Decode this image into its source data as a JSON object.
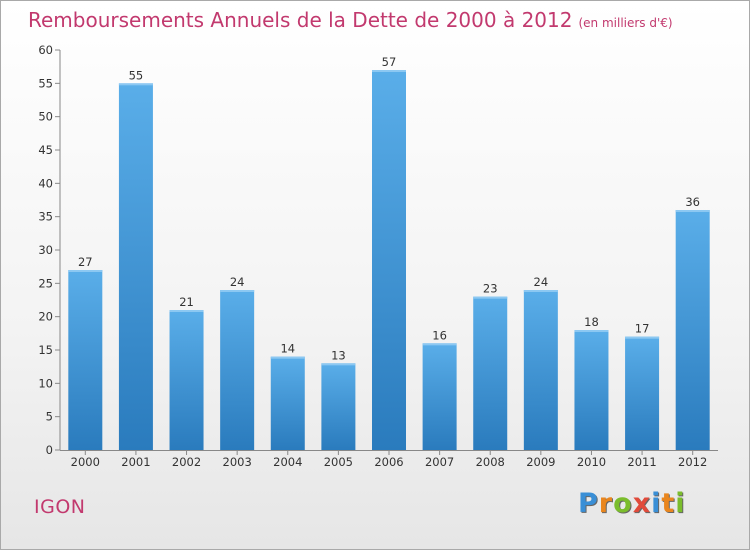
{
  "chart_data": {
    "type": "bar",
    "title": "Remboursements Annuels de la Dette de 2000 à 2012",
    "subtitle": "(en milliers d'€)",
    "categories": [
      "2000",
      "2001",
      "2002",
      "2003",
      "2004",
      "2005",
      "2006",
      "2007",
      "2008",
      "2009",
      "2010",
      "2011",
      "2012"
    ],
    "values": [
      27,
      55,
      21,
      24,
      14,
      13,
      57,
      16,
      23,
      24,
      18,
      17,
      36
    ],
    "ylim": [
      0,
      60
    ],
    "yticks": [
      0,
      5,
      10,
      15,
      20,
      25,
      30,
      35,
      40,
      45,
      50,
      55,
      60
    ],
    "grid": false,
    "bar_color": "#3d93d8"
  },
  "place_name": "IGON",
  "logo": {
    "letters": [
      {
        "char": "P",
        "color": "#3a8fd6"
      },
      {
        "char": "r",
        "color": "#e9861e"
      },
      {
        "char": "o",
        "color": "#7bbd2c"
      },
      {
        "char": "x",
        "color": "#e14b3b"
      },
      {
        "char": "i",
        "color": "#3a8fd6"
      },
      {
        "char": "t",
        "color": "#e9861e"
      },
      {
        "char": "i",
        "color": "#7bbd2c"
      }
    ]
  }
}
